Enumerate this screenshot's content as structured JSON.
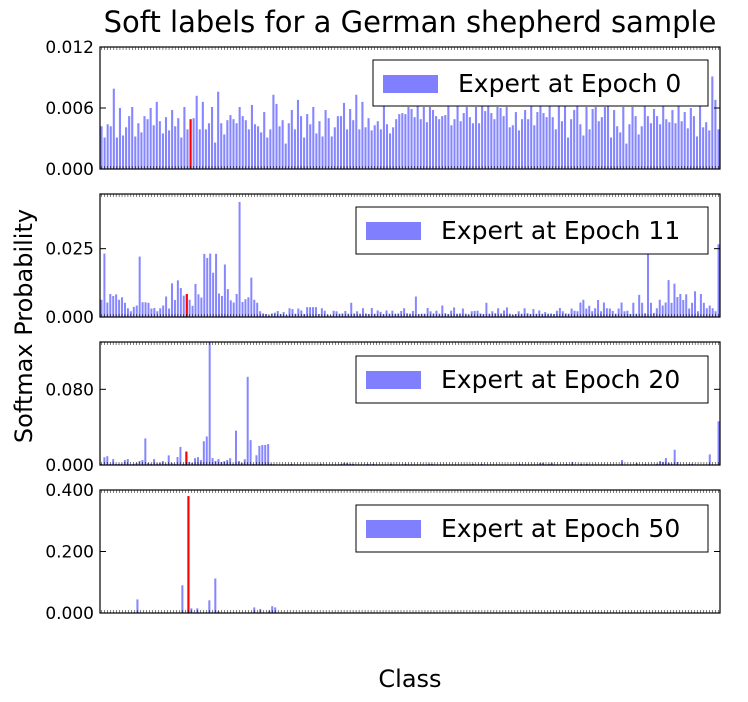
{
  "figure": {
    "title": "Soft labels for a German shepherd sample",
    "ylabel": "Softmax Probability",
    "xlabel": "Class"
  },
  "colors": {
    "bar": "#8080ff",
    "highlight": "#ff0000",
    "axis": "#000000"
  },
  "highlight_index": 29,
  "chart_data": [
    {
      "type": "bar",
      "legend": "Expert at Epoch 0",
      "ylim": [
        0,
        0.012
      ],
      "yticks": [
        "0.000",
        "0.006",
        "0.012"
      ],
      "ytick_values": [
        0,
        0.006,
        0.012
      ],
      "values": [
        0.0042,
        0.0031,
        0.0044,
        0.0042,
        0.0079,
        0.0031,
        0.006,
        0.0033,
        0.0041,
        0.0052,
        0.0061,
        0.0032,
        0.0045,
        0.0036,
        0.0052,
        0.0049,
        0.006,
        0.0043,
        0.0066,
        0.0047,
        0.0035,
        0.0051,
        0.0038,
        0.0058,
        0.0042,
        0.005,
        0.0031,
        0.0061,
        0.0039,
        0.0049,
        0.005,
        0.0072,
        0.0039,
        0.0066,
        0.0039,
        0.0045,
        0.0061,
        0.0026,
        0.0076,
        0.0045,
        0.0034,
        0.0048,
        0.0053,
        0.0049,
        0.0045,
        0.0061,
        0.0052,
        0.0048,
        0.0039,
        0.0063,
        0.0044,
        0.0042,
        0.0036,
        0.0056,
        0.0031,
        0.0039,
        0.0073,
        0.0064,
        0.0042,
        0.0048,
        0.0025,
        0.0045,
        0.0058,
        0.0039,
        0.0068,
        0.0052,
        0.0031,
        0.0054,
        0.0044,
        0.0061,
        0.0035,
        0.0047,
        0.0032,
        0.0058,
        0.005,
        0.0032,
        0.0041,
        0.0052,
        0.0052,
        0.0065,
        0.0039,
        0.0059,
        0.0048,
        0.0073,
        0.0039,
        0.0066,
        0.0041,
        0.005,
        0.0038,
        0.0043,
        0.0047,
        0.0039,
        0.0064,
        0.0044,
        0.0035,
        0.0041,
        0.0049,
        0.0054,
        0.0055,
        0.0054,
        0.0061,
        0.0059,
        0.0051,
        0.0063,
        0.0049,
        0.0061,
        0.0046,
        0.0061,
        0.0058,
        0.0052,
        0.0049,
        0.0052,
        0.0053,
        0.0082,
        0.0043,
        0.0049,
        0.0085,
        0.0047,
        0.0055,
        0.0061,
        0.0051,
        0.0045,
        0.0061,
        0.0045,
        0.0069,
        0.0057,
        0.0078,
        0.0055,
        0.0049,
        0.0061,
        0.006,
        0.0052,
        0.0061,
        0.0041,
        0.0043,
        0.0056,
        0.0038,
        0.0049,
        0.0058,
        0.0049,
        0.0071,
        0.0043,
        0.0056,
        0.0078,
        0.0055,
        0.0051,
        0.0101,
        0.0051,
        0.0039,
        0.0062,
        0.0047,
        0.0065,
        0.0031,
        0.0049,
        0.0058,
        0.0063,
        0.0044,
        0.0033,
        0.0061,
        0.0039,
        0.0059,
        0.0061,
        0.0047,
        0.0051,
        0.0061,
        0.0069,
        0.0031,
        0.0058,
        0.0042,
        0.0036,
        0.0061,
        0.0025,
        0.0044,
        0.0061,
        0.0052,
        0.0034,
        0.0042,
        0.0072,
        0.0052,
        0.0045,
        0.0059,
        0.0052,
        0.0044,
        0.0063,
        0.0049,
        0.0046,
        0.0058,
        0.0045,
        0.0062,
        0.0047,
        0.0056,
        0.004,
        0.006,
        0.0052,
        0.0032,
        0.0062,
        0.0041,
        0.0046,
        0.0038,
        0.0091,
        0.0068,
        0.0039
      ]
    },
    {
      "type": "bar",
      "legend": "Expert at Epoch 11",
      "ylim": [
        0,
        0.045
      ],
      "yticks": [
        "0.000",
        "0.025"
      ],
      "ytick_values": [
        0,
        0.025
      ],
      "values": [
        0.0063,
        0.0232,
        0.0053,
        0.0084,
        0.0077,
        0.0083,
        0.0063,
        0.0072,
        0.0052,
        0.0032,
        0.0021,
        0.0037,
        0.0042,
        0.0221,
        0.0054,
        0.0054,
        0.0052,
        0.0031,
        0.0033,
        0.0021,
        0.0032,
        0.0042,
        0.0075,
        0.0031,
        0.0123,
        0.0062,
        0.0134,
        0.0106,
        0.0078,
        0.0084,
        0.0063,
        0.0041,
        0.0121,
        0.0083,
        0.0071,
        0.0231,
        0.0216,
        0.0232,
        0.0162,
        0.0231,
        0.0086,
        0.0077,
        0.0192,
        0.0102,
        0.0061,
        0.0053,
        0.0084,
        0.0421,
        0.0055,
        0.0065,
        0.0072,
        0.0144,
        0.0063,
        0.0052,
        0.0021,
        0.0013,
        0.0011,
        0.0006,
        0.0013,
        0.0016,
        0.0022,
        0.0011,
        0.0018,
        0.0007,
        0.0032,
        0.0029,
        0.0012,
        0.0031,
        0.0024,
        0.0011,
        0.0036,
        0.0036,
        0.0036,
        0.0036,
        0.0011,
        0.0032,
        0.0023,
        0.0009,
        0.0006,
        0.0023,
        0.0021,
        0.0012,
        0.0013,
        0.0022,
        0.0012,
        0.0052,
        0.0013,
        0.0021,
        0.0012,
        0.0032,
        0.0013,
        0.0011,
        0.0033,
        0.0012,
        0.0024,
        0.0019,
        0.0011,
        0.0024,
        0.0012,
        0.0023,
        0.0012,
        0.0013,
        0.0022,
        0.0032,
        0.0014,
        0.0012,
        0.0022,
        0.0075,
        0.0011,
        0.0012,
        0.0012,
        0.0033,
        0.0021,
        0.0013,
        0.0023,
        0.0012,
        0.0042,
        0.0014,
        0.0011,
        0.0023,
        0.0035,
        0.0012,
        0.0013,
        0.0031,
        0.0012,
        0.0009,
        0.0021,
        0.0022,
        0.0023,
        0.0013,
        0.0011,
        0.0052,
        0.0012,
        0.0021,
        0.0014,
        0.0032,
        0.0013,
        0.0024,
        0.0035,
        0.0012,
        0.0008,
        0.0011,
        0.0021,
        0.0012,
        0.0032,
        0.0014,
        0.0011,
        0.0029,
        0.0012,
        0.0024,
        0.0012,
        0.0018,
        0.0012,
        0.0013,
        0.0011,
        0.0023,
        0.0033,
        0.0021,
        0.0013,
        0.0012,
        0.0031,
        0.0023,
        0.0021,
        0.0053,
        0.0063,
        0.0031,
        0.0041,
        0.0021,
        0.0032,
        0.0062,
        0.0021,
        0.0053,
        0.0032,
        0.0031,
        0.0022,
        0.0012,
        0.0031,
        0.0053,
        0.0021,
        0.0023,
        0.0011,
        0.0052,
        0.0012,
        0.0081,
        0.0052,
        0.0014,
        0.0273,
        0.0052,
        0.0015,
        0.0032,
        0.0063,
        0.0042,
        0.0053,
        0.0135,
        0.0052,
        0.0122,
        0.0073,
        0.0084,
        0.0062,
        0.0083,
        0.0031,
        0.0052,
        0.0094,
        0.0021,
        0.0084,
        0.0052,
        0.0032,
        0.0042,
        0.0032,
        0.0021,
        0.0266
      ]
    },
    {
      "type": "bar",
      "legend": "Expert at Epoch 20",
      "ylim": [
        0,
        0.13
      ],
      "yticks": [
        "0.000",
        "0.080"
      ],
      "ytick_values": [
        0,
        0.08
      ],
      "values": [
        0.0012,
        0.0082,
        0.0093,
        0.0012,
        0.0062,
        0.0011,
        0.0012,
        0.0014,
        0.0052,
        0.0063,
        0.0008,
        0.0012,
        0.0022,
        0.0042,
        0.0052,
        0.0281,
        0.0021,
        0.0012,
        0.0062,
        0.0016,
        0.0022,
        0.0041,
        0.0013,
        0.0102,
        0.0022,
        0.0013,
        0.0085,
        0.0191,
        0.0012,
        0.0142,
        0.0032,
        0.0021,
        0.0072,
        0.0083,
        0.0052,
        0.0251,
        0.0302,
        0.1322,
        0.0073,
        0.0043,
        0.0062,
        0.0032,
        0.0041,
        0.0053,
        0.0072,
        0.0012,
        0.0363,
        0.0042,
        0.0021,
        0.0061,
        0.0932,
        0.0263,
        0.0011,
        0.0103,
        0.0202,
        0.0211,
        0.0212,
        0.0221,
        0.0013,
        0.0008,
        0.0004,
        0.0004,
        0.0004,
        0.0006,
        0.0004,
        0.0013,
        0.0004,
        0.0004,
        0.0004,
        0.0004,
        0.0004,
        0.0004,
        0.0004,
        0.0004,
        0.0004,
        0.0012,
        0.0004,
        0.0004,
        0.0004,
        0.0004,
        0.0004,
        0.0004,
        0.0012,
        0.0023,
        0.0021,
        0.0013,
        0.0012,
        0.0004,
        0.0004,
        0.0004,
        0.0004,
        0.0012,
        0.0004,
        0.0012,
        0.0004,
        0.0004,
        0.0004,
        0.0004,
        0.0004,
        0.0013,
        0.0004,
        0.0004,
        0.0004,
        0.0004,
        0.0013,
        0.0004,
        0.0004,
        0.0004,
        0.0004,
        0.0004,
        0.0004,
        0.0004,
        0.0014,
        0.0012,
        0.0004,
        0.0004,
        0.0004,
        0.0004,
        0.0004,
        0.0004,
        0.0004,
        0.0004,
        0.0004,
        0.0004,
        0.0004,
        0.0004,
        0.0004,
        0.0011,
        0.0004,
        0.0004,
        0.0012,
        0.0004,
        0.0004,
        0.0004,
        0.0004,
        0.0004,
        0.0004,
        0.0004,
        0.0004,
        0.0004,
        0.0004,
        0.0004,
        0.0004,
        0.0012,
        0.0004,
        0.0004,
        0.0004,
        0.0004,
        0.0004,
        0.0004,
        0.0021,
        0.0023,
        0.0004,
        0.0012,
        0.0023,
        0.0004,
        0.0004,
        0.0004,
        0.0004,
        0.0011,
        0.0004,
        0.0032,
        0.0004,
        0.0004,
        0.0012,
        0.0004,
        0.0012,
        0.0004,
        0.0004,
        0.0004,
        0.0004,
        0.0004,
        0.0004,
        0.0004,
        0.0004,
        0.0004,
        0.0004,
        0.0004,
        0.0053,
        0.0004,
        0.0004,
        0.0004,
        0.0004,
        0.0021,
        0.0004,
        0.0004,
        0.0012,
        0.0004,
        0.0004,
        0.0004,
        0.0013,
        0.0042,
        0.0032,
        0.0073,
        0.0022,
        0.0014,
        0.0161,
        0.0032,
        0.0004,
        0.0004,
        0.0004,
        0.0012,
        0.0013,
        0.0004,
        0.0004,
        0.0004,
        0.0004,
        0.0004,
        0.0112,
        0.0004,
        0.0004,
        0.0462
      ]
    },
    {
      "type": "bar",
      "legend": "Expert at Epoch 50",
      "ylim": [
        0,
        0.4
      ],
      "yticks": [
        "0.000",
        "0.200",
        "0.400"
      ],
      "ytick_values": [
        0,
        0.2,
        0.4
      ],
      "values": [
        0.0005,
        0.0005,
        0.0005,
        0.0005,
        0.0005,
        0.0005,
        0.0005,
        0.0005,
        0.0005,
        0.0005,
        0.0005,
        0.0005,
        0.0442,
        0.0005,
        0.0005,
        0.0005,
        0.0005,
        0.0005,
        0.0005,
        0.0005,
        0.0005,
        0.0005,
        0.0005,
        0.0005,
        0.0005,
        0.0005,
        0.0005,
        0.0902,
        0.0005,
        0.3802,
        0.0152,
        0.0005,
        0.0152,
        0.0005,
        0.0005,
        0.0005,
        0.0412,
        0.0005,
        0.1122,
        0.0052,
        0.0005,
        0.0005,
        0.0005,
        0.0005,
        0.0005,
        0.0005,
        0.0005,
        0.0005,
        0.0005,
        0.0005,
        0.0005,
        0.0182,
        0.0005,
        0.0132,
        0.0005,
        0.0005,
        0.0082,
        0.0222,
        0.0182,
        0.0005,
        0.0005,
        0.0005,
        0.0005,
        0.0005,
        0.0005,
        0.0005,
        0.0005,
        0.0005,
        0.0005,
        0.0005,
        0.0005,
        0.0005,
        0.0005,
        0.0005,
        0.0005,
        0.0005,
        0.0005,
        0.0005,
        0.0005,
        0.0005,
        0.0005,
        0.0005,
        0.0005,
        0.0005,
        0.0005,
        0.0005,
        0.0005,
        0.0005,
        0.0005,
        0.0005,
        0.0005,
        0.0005,
        0.0005,
        0.0005,
        0.0005,
        0.0005,
        0.0005,
        0.0005,
        0.0005,
        0.0005,
        0.0005,
        0.0005,
        0.0005,
        0.0005,
        0.0005,
        0.0005,
        0.0005,
        0.0005,
        0.0005,
        0.0005,
        0.0005,
        0.0005,
        0.0005,
        0.0005,
        0.0005,
        0.0005,
        0.0005,
        0.0005,
        0.0005,
        0.0005,
        0.0005,
        0.0005,
        0.0005,
        0.0005,
        0.0005,
        0.0005,
        0.0005,
        0.0005,
        0.0005,
        0.0005,
        0.0005,
        0.0005,
        0.0005,
        0.0005,
        0.0005,
        0.0005,
        0.0005,
        0.0005,
        0.0005,
        0.0005,
        0.0005,
        0.0005,
        0.0005,
        0.0005,
        0.0005,
        0.0005,
        0.0005,
        0.0005,
        0.0005,
        0.0005,
        0.0005,
        0.0005,
        0.0005,
        0.0005,
        0.0005,
        0.0005,
        0.0005,
        0.0005,
        0.0005,
        0.0005,
        0.0005,
        0.0005,
        0.0005,
        0.0005,
        0.0005,
        0.0005,
        0.0005,
        0.0005,
        0.0005,
        0.0005,
        0.0005,
        0.0005,
        0.0005,
        0.0005,
        0.0005,
        0.0005,
        0.0005,
        0.0005,
        0.0005,
        0.0005,
        0.0005,
        0.0005,
        0.0005,
        0.0005,
        0.0005,
        0.0005,
        0.0005,
        0.0005,
        0.0005,
        0.0005,
        0.0005,
        0.0005,
        0.0005,
        0.0005,
        0.0005,
        0.0005,
        0.0005,
        0.0005,
        0.0005,
        0.0005,
        0.0005,
        0.0005,
        0.0005,
        0.0005,
        0.0005,
        0.0005,
        0.0005
      ]
    }
  ]
}
